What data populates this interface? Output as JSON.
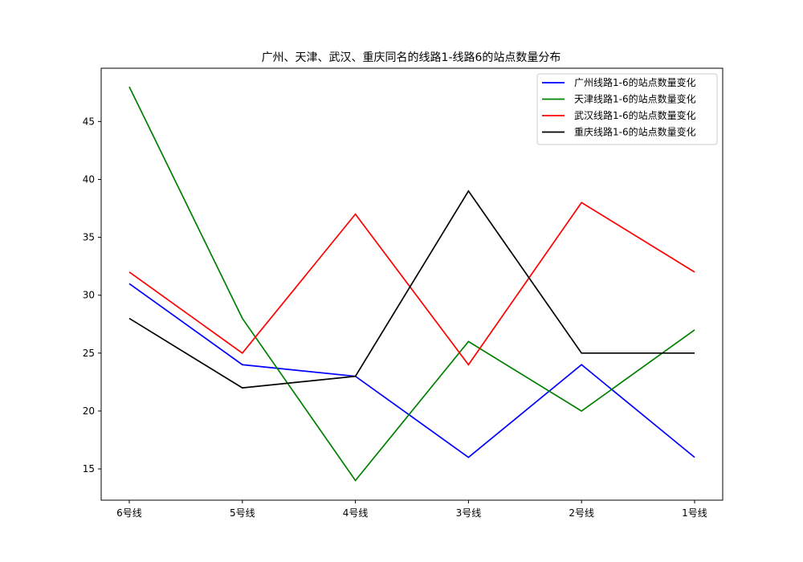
{
  "chart_data": {
    "type": "line",
    "title": "广州、天津、武汉、重庆同名的线路1-线路6的站点数量分布",
    "xlabel": "",
    "ylabel": "",
    "categories": [
      "6号线",
      "5号线",
      "4号线",
      "3号线",
      "2号线",
      "1号线"
    ],
    "yticks": [
      15,
      20,
      25,
      30,
      35,
      40,
      45
    ],
    "ylim": [
      12.3,
      49.6
    ],
    "grid": false,
    "legend_position": "top-right",
    "series": [
      {
        "name": "广州线路1-6的站点数量变化",
        "color": "#0000ff",
        "values": [
          31,
          24,
          23,
          16,
          24,
          16
        ]
      },
      {
        "name": "天津线路1-6的站点数量变化",
        "color": "#008000",
        "values": [
          48,
          28,
          14,
          26,
          20,
          27
        ]
      },
      {
        "name": "武汉线路1-6的站点数量变化",
        "color": "#ff0000",
        "values": [
          32,
          25,
          37,
          24,
          38,
          32
        ]
      },
      {
        "name": "重庆线路1-6的站点数量变化",
        "color": "#000000",
        "values": [
          28,
          22,
          23,
          39,
          25,
          25
        ]
      }
    ]
  }
}
